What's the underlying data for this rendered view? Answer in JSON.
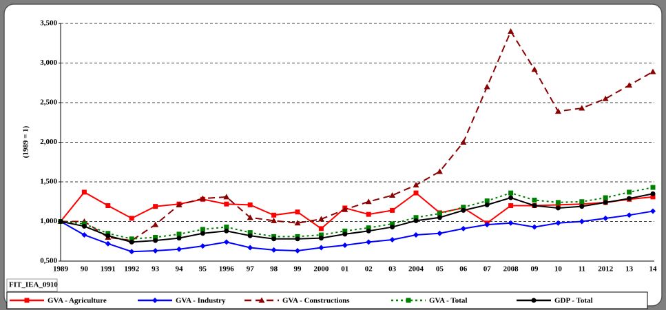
{
  "chart_data": {
    "type": "line",
    "y_axis_label": "(1989 = 1)",
    "note": "FIT_IEA_0910",
    "categories": [
      "1989",
      "90",
      "1991",
      "1992",
      "93",
      "94",
      "95",
      "1996",
      "97",
      "98",
      "99",
      "2000",
      "01",
      "02",
      "03",
      "2004",
      "05",
      "06",
      "07",
      "2008",
      "09",
      "10",
      "11",
      "2012",
      "13",
      "14"
    ],
    "ylim": [
      0.5,
      3.5
    ],
    "yticks": [
      {
        "value": 0.5,
        "label": "0,500"
      },
      {
        "value": 1,
        "label": "1,000"
      },
      {
        "value": 1.5,
        "label": "1,500"
      },
      {
        "value": 2,
        "label": "2,000"
      },
      {
        "value": 2.5,
        "label": "2,500"
      },
      {
        "value": 3,
        "label": "3,000"
      },
      {
        "value": 3.5,
        "label": "3,500"
      }
    ],
    "grid": true,
    "legend": "bottom",
    "series": [
      {
        "name": "GVA - Agriculture",
        "color": "#ff0000",
        "line_style": "solid",
        "marker": "square",
        "values": [
          1.0,
          1.37,
          1.2,
          1.04,
          1.19,
          1.22,
          1.28,
          1.22,
          1.21,
          1.08,
          1.12,
          0.91,
          1.17,
          1.09,
          1.14,
          1.36,
          1.11,
          1.17,
          0.98,
          1.2,
          1.2,
          1.21,
          1.22,
          1.24,
          1.28,
          1.31
        ]
      },
      {
        "name": "GVA - Industry",
        "color": "#0000ff",
        "line_style": "solid",
        "marker": "diamond",
        "values": [
          1.0,
          0.83,
          0.72,
          0.62,
          0.63,
          0.65,
          0.69,
          0.74,
          0.67,
          0.64,
          0.63,
          0.67,
          0.7,
          0.74,
          0.77,
          0.83,
          0.85,
          0.91,
          0.96,
          0.98,
          0.93,
          0.98,
          1.0,
          1.04,
          1.08,
          1.13
        ]
      },
      {
        "name": "GVA - Constructions",
        "color": "#8b0000",
        "line_style": "dashed",
        "marker": "triangle",
        "values": [
          1.0,
          1.0,
          0.8,
          0.76,
          0.96,
          1.21,
          1.29,
          1.31,
          1.05,
          1.01,
          0.98,
          1.03,
          1.15,
          1.25,
          1.33,
          1.46,
          1.63,
          2.0,
          2.7,
          3.4,
          2.92,
          2.39,
          2.43,
          2.55,
          2.72,
          2.89
        ]
      },
      {
        "name": "GVA - Total",
        "color": "#008000",
        "line_style": "dotted",
        "marker": "square",
        "values": [
          1.0,
          0.97,
          0.85,
          0.78,
          0.8,
          0.84,
          0.9,
          0.93,
          0.86,
          0.81,
          0.81,
          0.83,
          0.88,
          0.92,
          0.97,
          1.05,
          1.1,
          1.18,
          1.26,
          1.36,
          1.27,
          1.24,
          1.25,
          1.3,
          1.37,
          1.43
        ]
      },
      {
        "name": "GDP - Total",
        "color": "#000000",
        "line_style": "solid",
        "marker": "circle",
        "values": [
          1.0,
          0.94,
          0.82,
          0.74,
          0.76,
          0.79,
          0.85,
          0.88,
          0.82,
          0.78,
          0.78,
          0.79,
          0.84,
          0.88,
          0.93,
          1.01,
          1.05,
          1.14,
          1.21,
          1.3,
          1.2,
          1.17,
          1.19,
          1.24,
          1.29,
          1.35
        ]
      }
    ]
  }
}
